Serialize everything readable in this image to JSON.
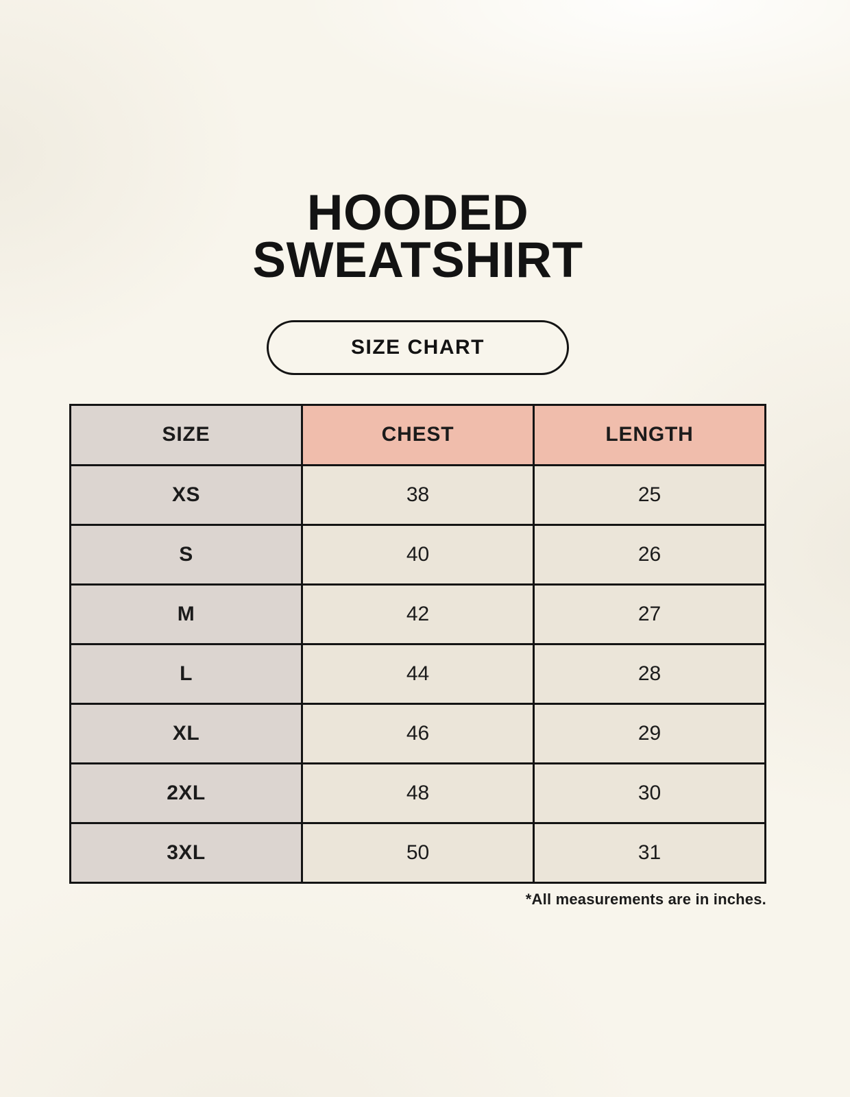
{
  "page": {
    "title_line1": "HOODED",
    "title_line2": "SWEATSHIRT",
    "size_chart_label": "SIZE CHART",
    "footnote": "*All measurements are in inches."
  },
  "chart_data": {
    "type": "table",
    "title": "HOODED SWEATSHIRT",
    "subtitle": "SIZE CHART",
    "columns": [
      "SIZE",
      "CHEST",
      "LENGTH"
    ],
    "rows": [
      [
        "XS",
        "38",
        "25"
      ],
      [
        "S",
        "40",
        "26"
      ],
      [
        "M",
        "42",
        "27"
      ],
      [
        "L",
        "44",
        "28"
      ],
      [
        "XL",
        "46",
        "29"
      ],
      [
        "2XL",
        "48",
        "30"
      ],
      [
        "3XL",
        "50",
        "31"
      ]
    ],
    "units": "inches",
    "annotations": [
      "*All measurements are in inches."
    ]
  },
  "colors": {
    "background": "#f8f5ec",
    "header_accent": "#f0bdac",
    "size_column": "#dcd5d0",
    "value_cell": "#ebe5d9",
    "border": "#141414",
    "text": "#1b1b1b"
  }
}
